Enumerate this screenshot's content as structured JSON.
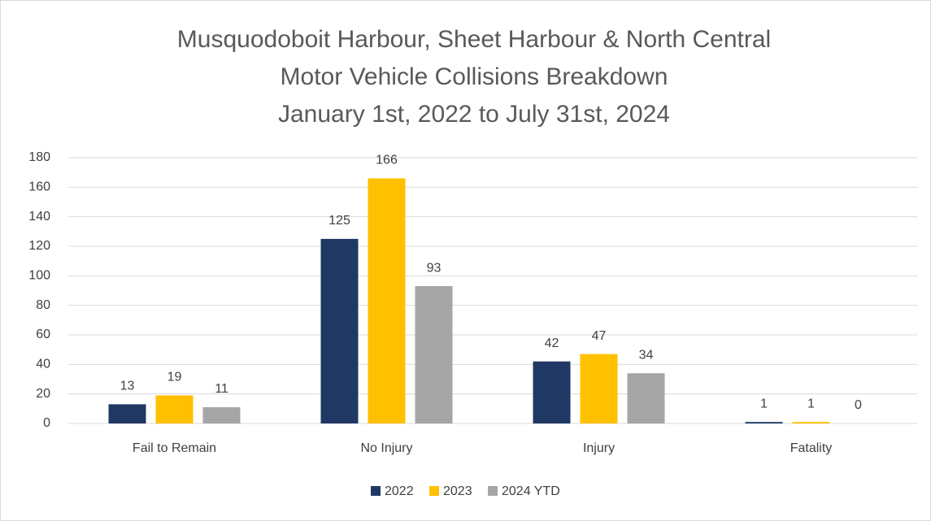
{
  "chart_data": {
    "type": "bar",
    "title": [
      "Musquodoboit Harbour, Sheet Harbour & North Central",
      "Motor Vehicle Collisions Breakdown",
      "January 1st, 2022 to July 31st, 2024"
    ],
    "categories": [
      "Fail to Remain",
      "No Injury",
      "Injury",
      "Fatality"
    ],
    "series": [
      {
        "name": "2022",
        "color": "#203864",
        "values": [
          13,
          125,
          42,
          1
        ]
      },
      {
        "name": "2023",
        "color": "#ffc000",
        "values": [
          19,
          166,
          47,
          1
        ]
      },
      {
        "name": "2024 YTD",
        "color": "#a5a5a5",
        "values": [
          11,
          93,
          34,
          0
        ]
      }
    ],
    "ylim": [
      0,
      180
    ],
    "yticks": [
      0,
      20,
      40,
      60,
      80,
      100,
      120,
      140,
      160,
      180
    ],
    "grid": true,
    "legend": "bottom"
  }
}
